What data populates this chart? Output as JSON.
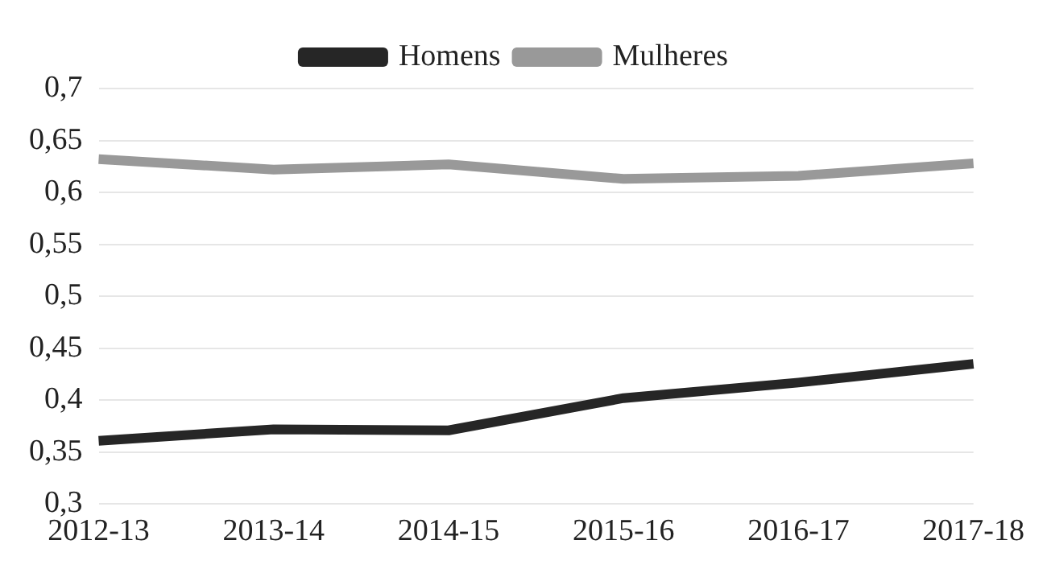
{
  "chart_data": {
    "type": "line",
    "categories": [
      "2012-13",
      "2013-14",
      "2014-15",
      "2015-16",
      "2016-17",
      "2017-18"
    ],
    "series": [
      {
        "name": "Homens",
        "color": "#262626",
        "values": [
          0.361,
          0.372,
          0.371,
          0.402,
          0.417,
          0.435
        ]
      },
      {
        "name": "Mulheres",
        "color": "#999999",
        "values": [
          0.632,
          0.622,
          0.627,
          0.613,
          0.616,
          0.628
        ]
      }
    ],
    "ylim": [
      0.3,
      0.7
    ],
    "yticks": [
      {
        "value": 0.3,
        "label": "0,3"
      },
      {
        "value": 0.35,
        "label": "0,35"
      },
      {
        "value": 0.4,
        "label": "0,4"
      },
      {
        "value": 0.45,
        "label": "0,45"
      },
      {
        "value": 0.5,
        "label": "0,5"
      },
      {
        "value": 0.55,
        "label": "0,55"
      },
      {
        "value": 0.6,
        "label": "0,6"
      },
      {
        "value": 0.65,
        "label": "0,65"
      },
      {
        "value": 0.7,
        "label": "0,7"
      }
    ],
    "grid": "y",
    "legend": "top",
    "marker": "none",
    "line_style": "solid"
  }
}
